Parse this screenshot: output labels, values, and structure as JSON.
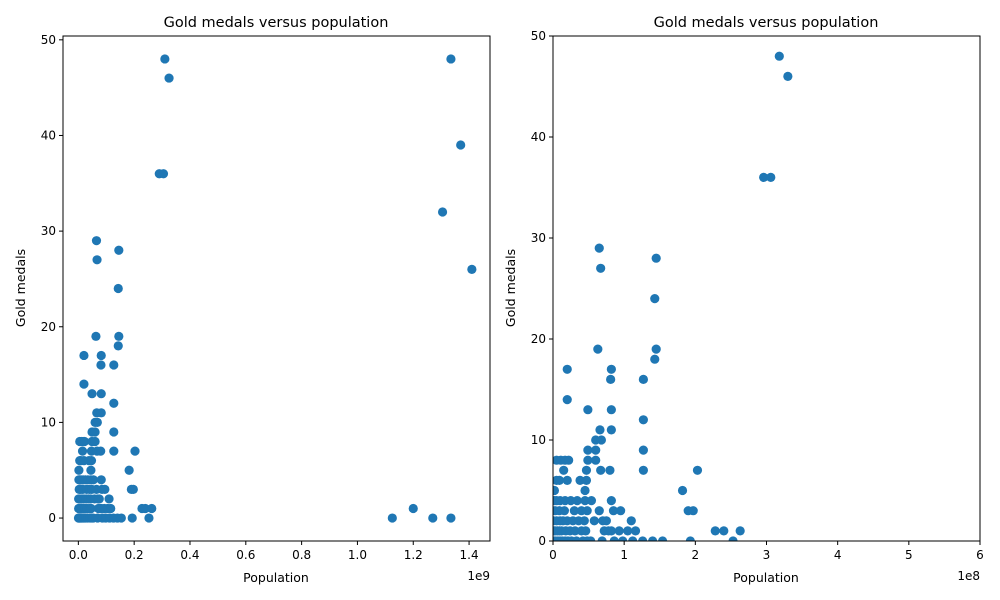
{
  "colors": {
    "point": "#1f77b4",
    "axis": "#000000",
    "background": "#ffffff"
  },
  "chart_data": [
    {
      "type": "scatter",
      "title": "Gold medals versus population",
      "xlabel": "Population",
      "ylabel": "Gold medals",
      "x_offset_label": "1e9",
      "xlim": [
        -55000000,
        1475000000
      ],
      "ylim": [
        -2.4,
        50.4
      ],
      "xticks": [
        0,
        200000000,
        400000000,
        600000000,
        800000000,
        1000000000,
        1200000000,
        1400000000
      ],
      "xtick_labels": [
        "0.0",
        "0.2",
        "0.4",
        "0.6",
        "0.8",
        "1.0",
        "1.2",
        "1.4"
      ],
      "yticks": [
        0,
        10,
        20,
        30,
        40,
        50
      ],
      "ytick_labels": [
        "0",
        "10",
        "20",
        "30",
        "40",
        "50"
      ],
      "grid": false,
      "points": [
        [
          310000000,
          48
        ],
        [
          325000000,
          46
        ],
        [
          290000000,
          36
        ],
        [
          305000000,
          36
        ],
        [
          1335000000,
          48
        ],
        [
          1370000000,
          39
        ],
        [
          1305000000,
          32
        ],
        [
          1410000000,
          26
        ],
        [
          1125000000,
          0
        ],
        [
          1200000000,
          1
        ],
        [
          1270000000,
          0
        ],
        [
          1335000000,
          0
        ],
        [
          65000000,
          29
        ],
        [
          67000000,
          27
        ],
        [
          145000000,
          28
        ],
        [
          143000000,
          24
        ],
        [
          63000000,
          19
        ],
        [
          145000000,
          19
        ],
        [
          143000000,
          18
        ],
        [
          20000000,
          17
        ],
        [
          82000000,
          17
        ],
        [
          81000000,
          16
        ],
        [
          127000000,
          16
        ],
        [
          20000000,
          14
        ],
        [
          49000000,
          13
        ],
        [
          82000000,
          13
        ],
        [
          127000000,
          12
        ],
        [
          66000000,
          11
        ],
        [
          82000000,
          11
        ],
        [
          60000000,
          10
        ],
        [
          68000000,
          10
        ],
        [
          49000000,
          9
        ],
        [
          60000000,
          9
        ],
        [
          127000000,
          9
        ],
        [
          5000000,
          8
        ],
        [
          11000000,
          8
        ],
        [
          17000000,
          8
        ],
        [
          22000000,
          8
        ],
        [
          49000000,
          8
        ],
        [
          60000000,
          8
        ],
        [
          15000000,
          7
        ],
        [
          47000000,
          7
        ],
        [
          67000000,
          7
        ],
        [
          80000000,
          7
        ],
        [
          127000000,
          7
        ],
        [
          203000000,
          7
        ],
        [
          5000000,
          6
        ],
        [
          9000000,
          6
        ],
        [
          20000000,
          6
        ],
        [
          38000000,
          6
        ],
        [
          47000000,
          6
        ],
        [
          2000000,
          5
        ],
        [
          45000000,
          5
        ],
        [
          182000000,
          5
        ],
        [
          2000000,
          4
        ],
        [
          5000000,
          4
        ],
        [
          10000000,
          4
        ],
        [
          17000000,
          4
        ],
        [
          25000000,
          4
        ],
        [
          34000000,
          4
        ],
        [
          45000000,
          4
        ],
        [
          54000000,
          4
        ],
        [
          82000000,
          4
        ],
        [
          3000000,
          3
        ],
        [
          9000000,
          3
        ],
        [
          16000000,
          3
        ],
        [
          30000000,
          3
        ],
        [
          40000000,
          3
        ],
        [
          48000000,
          3
        ],
        [
          65000000,
          3
        ],
        [
          85000000,
          3
        ],
        [
          95000000,
          3
        ],
        [
          190000000,
          3
        ],
        [
          197000000,
          3
        ],
        [
          1000000,
          2
        ],
        [
          5000000,
          2
        ],
        [
          10000000,
          2
        ],
        [
          14000000,
          2
        ],
        [
          20000000,
          2
        ],
        [
          28000000,
          2
        ],
        [
          36000000,
          2
        ],
        [
          44000000,
          2
        ],
        [
          58000000,
          2
        ],
        [
          70000000,
          2
        ],
        [
          75000000,
          2
        ],
        [
          110000000,
          2
        ],
        [
          1000000,
          1
        ],
        [
          3000000,
          1
        ],
        [
          6000000,
          1
        ],
        [
          9000000,
          1
        ],
        [
          12000000,
          1
        ],
        [
          18000000,
          1
        ],
        [
          24000000,
          1
        ],
        [
          31000000,
          1
        ],
        [
          40000000,
          1
        ],
        [
          46000000,
          1
        ],
        [
          72000000,
          1
        ],
        [
          78000000,
          1
        ],
        [
          82000000,
          1
        ],
        [
          93000000,
          1
        ],
        [
          105000000,
          1
        ],
        [
          116000000,
          1
        ],
        [
          228000000,
          1
        ],
        [
          240000000,
          1
        ],
        [
          263000000,
          1
        ],
        [
          500000,
          0
        ],
        [
          2000000,
          0
        ],
        [
          4000000,
          0
        ],
        [
          7000000,
          0
        ],
        [
          10000000,
          0
        ],
        [
          13000000,
          0
        ],
        [
          17000000,
          0
        ],
        [
          21000000,
          0
        ],
        [
          26000000,
          0
        ],
        [
          33000000,
          0
        ],
        [
          42000000,
          0
        ],
        [
          48000000,
          0
        ],
        [
          53000000,
          0
        ],
        [
          69000000,
          0
        ],
        [
          86000000,
          0
        ],
        [
          98000000,
          0
        ],
        [
          112000000,
          0
        ],
        [
          126000000,
          0
        ],
        [
          140000000,
          0
        ],
        [
          154000000,
          0
        ],
        [
          193000000,
          0
        ],
        [
          253000000,
          0
        ]
      ]
    },
    {
      "type": "scatter",
      "title": "Gold medals versus population",
      "xlabel": "Population",
      "ylabel": "Gold medals",
      "x_offset_label": "1e8",
      "xlim": [
        0,
        600000000
      ],
      "ylim": [
        0,
        50
      ],
      "xticks": [
        0,
        100000000,
        200000000,
        300000000,
        400000000,
        500000000,
        600000000
      ],
      "xtick_labels": [
        "0",
        "1",
        "2",
        "3",
        "4",
        "5",
        "6"
      ],
      "yticks": [
        0,
        10,
        20,
        30,
        40,
        50
      ],
      "ytick_labels": [
        "0",
        "10",
        "20",
        "30",
        "40",
        "50"
      ],
      "grid": false,
      "points": [
        [
          318000000,
          48
        ],
        [
          330000000,
          46
        ],
        [
          296000000,
          36
        ],
        [
          306000000,
          36
        ],
        [
          65000000,
          29
        ],
        [
          67000000,
          27
        ],
        [
          145000000,
          28
        ],
        [
          143000000,
          24
        ],
        [
          63000000,
          19
        ],
        [
          145000000,
          19
        ],
        [
          143000000,
          18
        ],
        [
          20000000,
          17
        ],
        [
          82000000,
          17
        ],
        [
          81000000,
          16
        ],
        [
          127000000,
          16
        ],
        [
          20000000,
          14
        ],
        [
          49000000,
          13
        ],
        [
          82000000,
          13
        ],
        [
          127000000,
          12
        ],
        [
          66000000,
          11
        ],
        [
          82000000,
          11
        ],
        [
          60000000,
          10
        ],
        [
          68000000,
          10
        ],
        [
          49000000,
          9
        ],
        [
          60000000,
          9
        ],
        [
          127000000,
          9
        ],
        [
          5000000,
          8
        ],
        [
          11000000,
          8
        ],
        [
          17000000,
          8
        ],
        [
          22000000,
          8
        ],
        [
          49000000,
          8
        ],
        [
          60000000,
          8
        ],
        [
          15000000,
          7
        ],
        [
          47000000,
          7
        ],
        [
          67000000,
          7
        ],
        [
          80000000,
          7
        ],
        [
          127000000,
          7
        ],
        [
          203000000,
          7
        ],
        [
          5000000,
          6
        ],
        [
          9000000,
          6
        ],
        [
          20000000,
          6
        ],
        [
          38000000,
          6
        ],
        [
          47000000,
          6
        ],
        [
          2000000,
          5
        ],
        [
          45000000,
          5
        ],
        [
          182000000,
          5
        ],
        [
          2000000,
          4
        ],
        [
          5000000,
          4
        ],
        [
          10000000,
          4
        ],
        [
          17000000,
          4
        ],
        [
          25000000,
          4
        ],
        [
          34000000,
          4
        ],
        [
          45000000,
          4
        ],
        [
          54000000,
          4
        ],
        [
          82000000,
          4
        ],
        [
          3000000,
          3
        ],
        [
          9000000,
          3
        ],
        [
          16000000,
          3
        ],
        [
          30000000,
          3
        ],
        [
          40000000,
          3
        ],
        [
          48000000,
          3
        ],
        [
          65000000,
          3
        ],
        [
          85000000,
          3
        ],
        [
          95000000,
          3
        ],
        [
          190000000,
          3
        ],
        [
          197000000,
          3
        ],
        [
          1000000,
          2
        ],
        [
          5000000,
          2
        ],
        [
          10000000,
          2
        ],
        [
          14000000,
          2
        ],
        [
          20000000,
          2
        ],
        [
          28000000,
          2
        ],
        [
          36000000,
          2
        ],
        [
          44000000,
          2
        ],
        [
          58000000,
          2
        ],
        [
          70000000,
          2
        ],
        [
          75000000,
          2
        ],
        [
          110000000,
          2
        ],
        [
          1000000,
          1
        ],
        [
          3000000,
          1
        ],
        [
          6000000,
          1
        ],
        [
          9000000,
          1
        ],
        [
          12000000,
          1
        ],
        [
          18000000,
          1
        ],
        [
          24000000,
          1
        ],
        [
          31000000,
          1
        ],
        [
          40000000,
          1
        ],
        [
          46000000,
          1
        ],
        [
          72000000,
          1
        ],
        [
          78000000,
          1
        ],
        [
          82000000,
          1
        ],
        [
          93000000,
          1
        ],
        [
          105000000,
          1
        ],
        [
          116000000,
          1
        ],
        [
          228000000,
          1
        ],
        [
          240000000,
          1
        ],
        [
          263000000,
          1
        ],
        [
          500000,
          0
        ],
        [
          2000000,
          0
        ],
        [
          4000000,
          0
        ],
        [
          7000000,
          0
        ],
        [
          10000000,
          0
        ],
        [
          13000000,
          0
        ],
        [
          17000000,
          0
        ],
        [
          21000000,
          0
        ],
        [
          26000000,
          0
        ],
        [
          33000000,
          0
        ],
        [
          42000000,
          0
        ],
        [
          48000000,
          0
        ],
        [
          53000000,
          0
        ],
        [
          69000000,
          0
        ],
        [
          86000000,
          0
        ],
        [
          98000000,
          0
        ],
        [
          112000000,
          0
        ],
        [
          126000000,
          0
        ],
        [
          140000000,
          0
        ],
        [
          154000000,
          0
        ],
        [
          193000000,
          0
        ],
        [
          253000000,
          0
        ]
      ]
    }
  ]
}
